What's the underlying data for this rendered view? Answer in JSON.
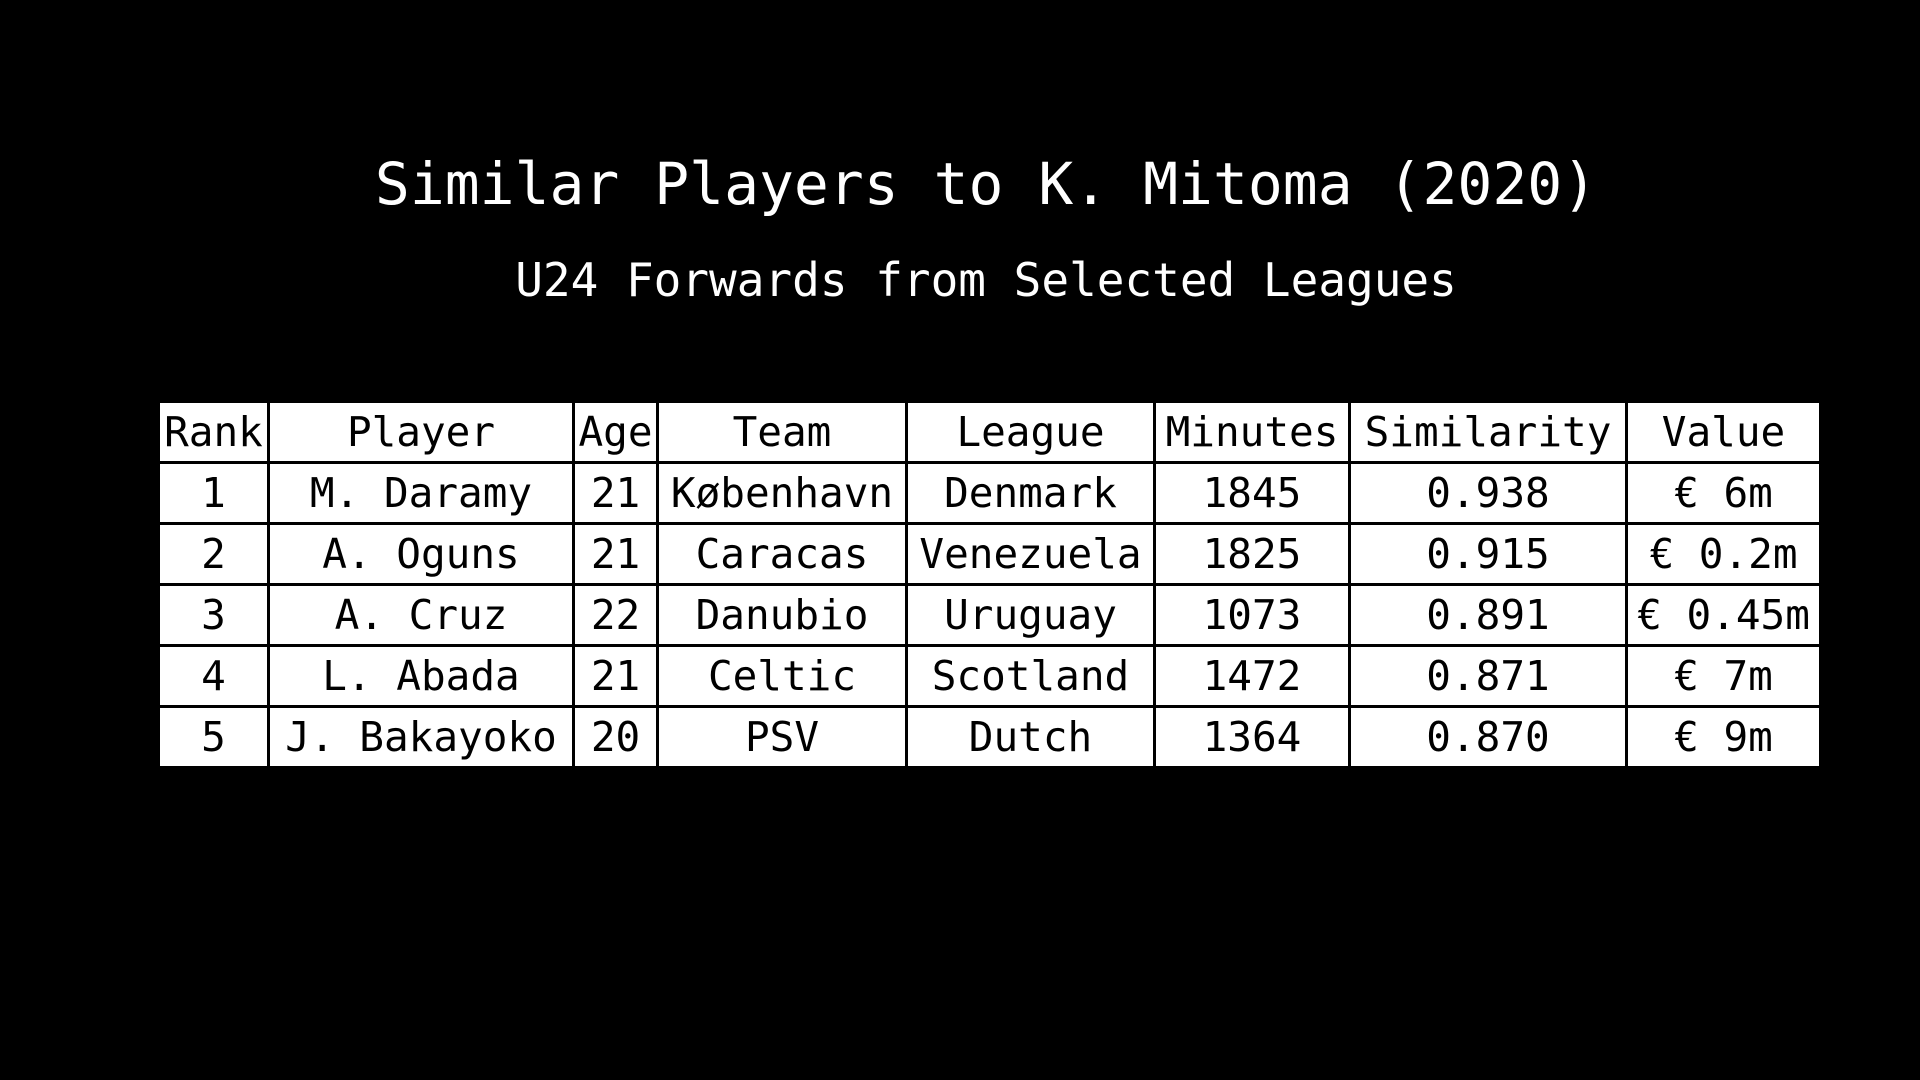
{
  "chart_data": {
    "type": "table",
    "title": "Similar Players to K. Mitoma (2020)",
    "subtitle": "U24 Forwards from Selected Leagues",
    "columns": [
      "Rank",
      "Player",
      "Age",
      "Team",
      "League",
      "Minutes",
      "Similarity",
      "Value"
    ],
    "rows": [
      [
        "1",
        "M. Daramy",
        "21",
        "København",
        "Denmark",
        "1845",
        "0.938",
        "€ 6m"
      ],
      [
        "2",
        "A. Oguns",
        "21",
        "Caracas",
        "Venezuela",
        "1825",
        "0.915",
        "€ 0.2m"
      ],
      [
        "3",
        "A. Cruz",
        "22",
        "Danubio",
        "Uruguay",
        "1073",
        "0.891",
        "€ 0.45m"
      ],
      [
        "4",
        "L. Abada",
        "21",
        "Celtic",
        "Scotland",
        "1472",
        "0.871",
        "€ 7m"
      ],
      [
        "5",
        "J. Bakayoko",
        "20",
        "PSV",
        "Dutch",
        "1364",
        "0.870",
        "€ 9m"
      ]
    ]
  },
  "colors": {
    "background": "#000000",
    "cell_background": "#ffffff",
    "cell_text": "#000000",
    "title_text": "#ffffff"
  }
}
